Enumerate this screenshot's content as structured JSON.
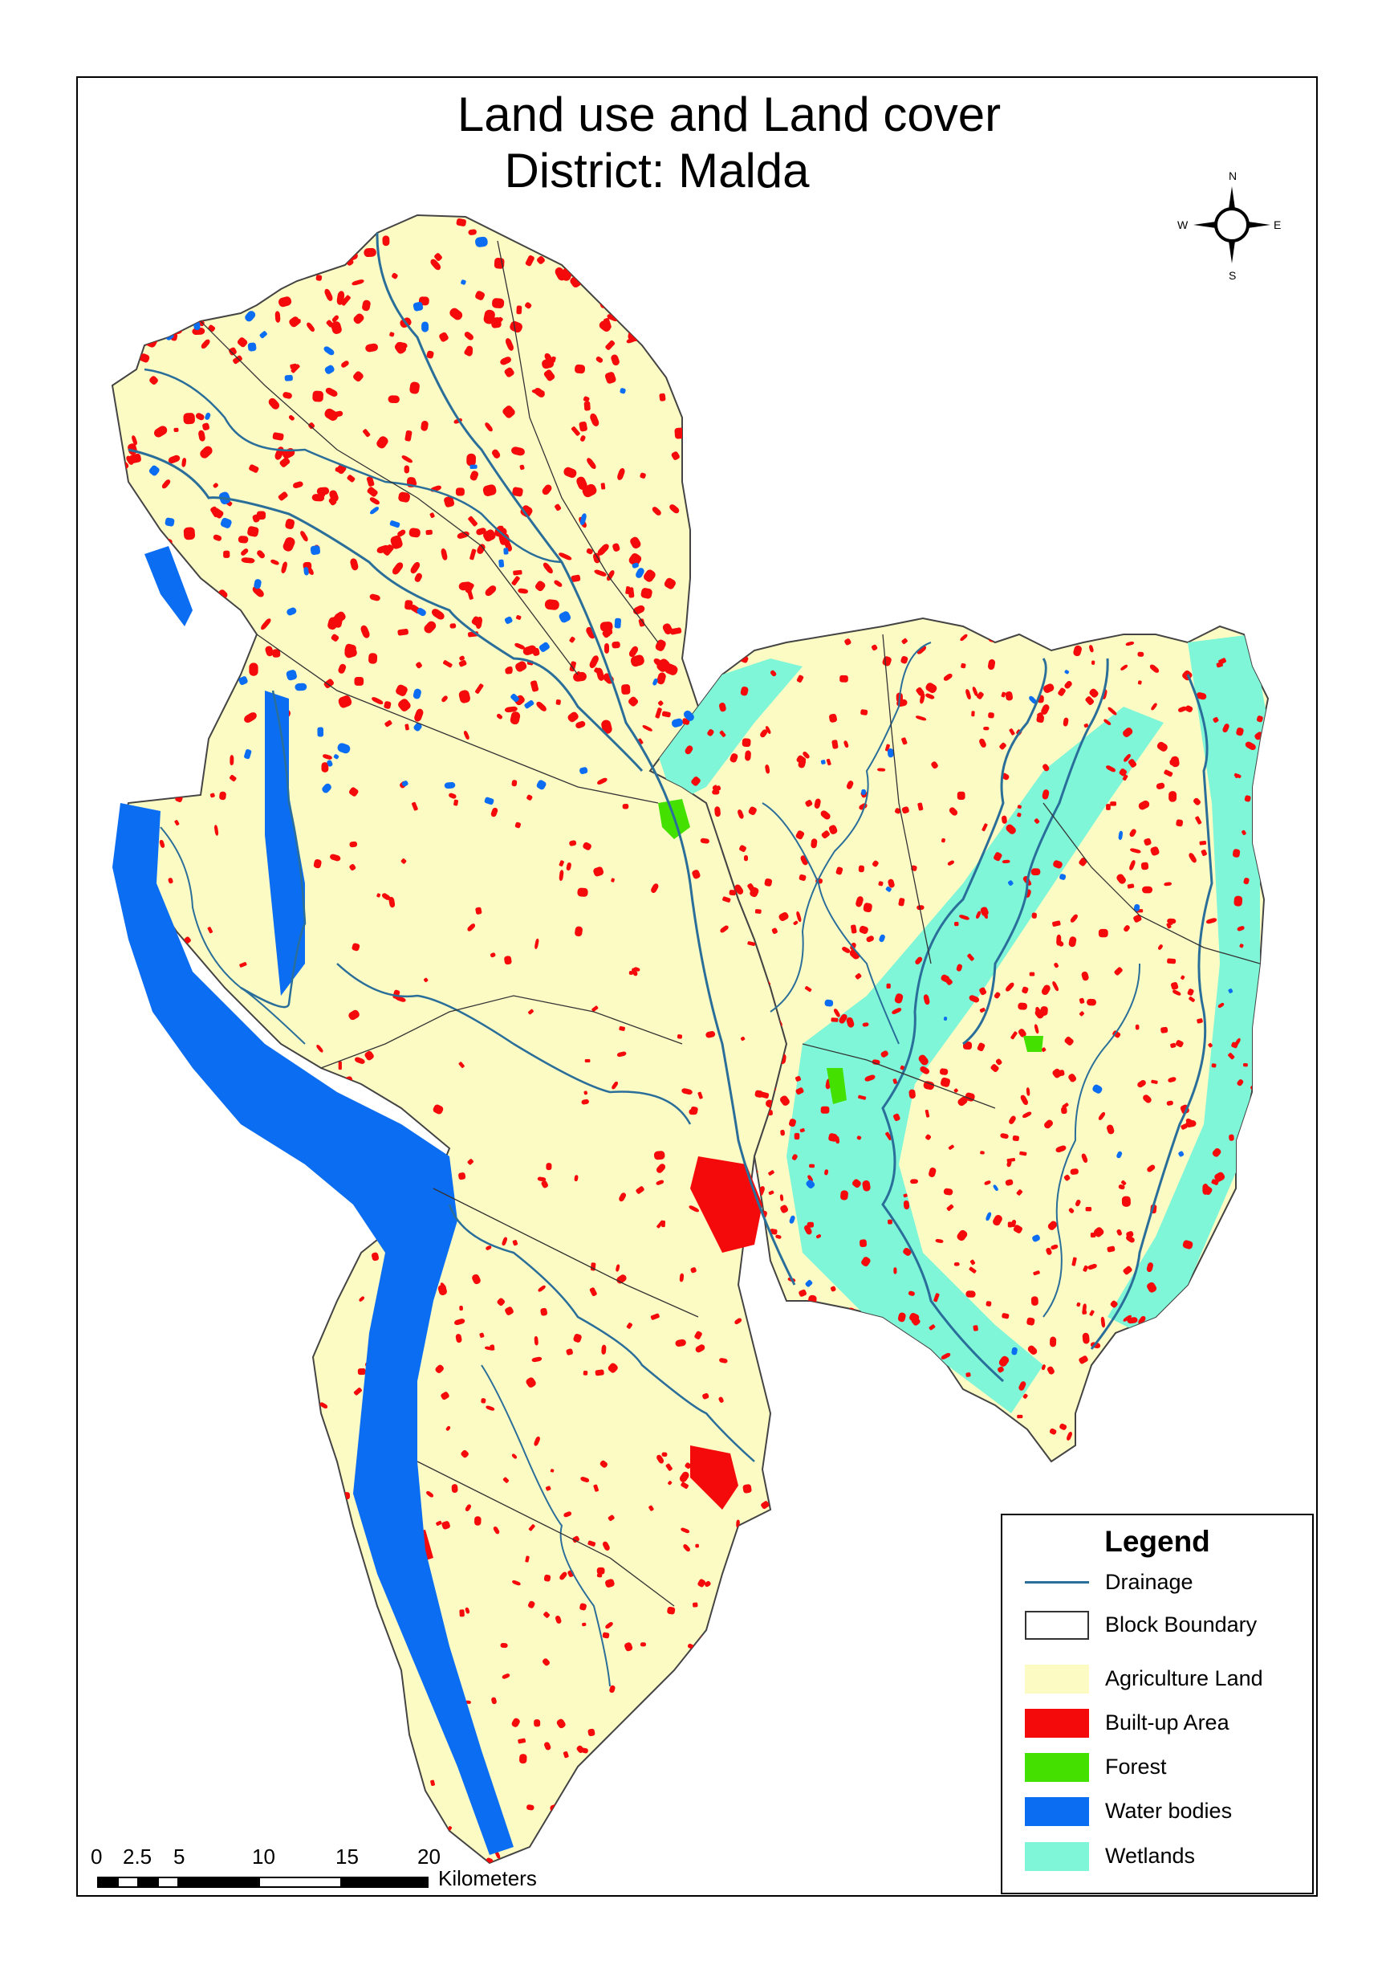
{
  "title_line1": "Land use and Land cover",
  "title_line2": "District: Malda",
  "compass": {
    "n": "N",
    "s": "S",
    "e": "E",
    "w": "W"
  },
  "legend": {
    "title": "Legend",
    "items": [
      {
        "label": "Drainage",
        "kind": "line",
        "color": "#2a6e9a"
      },
      {
        "label": "Block Boundary",
        "kind": "outline",
        "color": "#ffffff"
      },
      {
        "label": "Agriculture Land",
        "kind": "fill",
        "color": "#fdfbc4"
      },
      {
        "label": "Built-up Area",
        "kind": "fill",
        "color": "#f40a0a"
      },
      {
        "label": "Forest",
        "kind": "fill",
        "color": "#44e000"
      },
      {
        "label": "Water bodies",
        "kind": "fill",
        "color": "#0b6df2"
      },
      {
        "label": "Wetlands",
        "kind": "fill",
        "color": "#7ff6d8"
      }
    ]
  },
  "scale": {
    "ticks": [
      "0",
      "2.5",
      "5",
      "10",
      "15",
      "20"
    ],
    "unit": "Kilometers"
  },
  "colors": {
    "agriculture": "#fdfbc4",
    "builtup": "#f40a0a",
    "forest": "#44e000",
    "water": "#0b6df2",
    "wetland": "#7ff6d8",
    "drainage": "#2a6e9a",
    "boundary": "#333333"
  }
}
